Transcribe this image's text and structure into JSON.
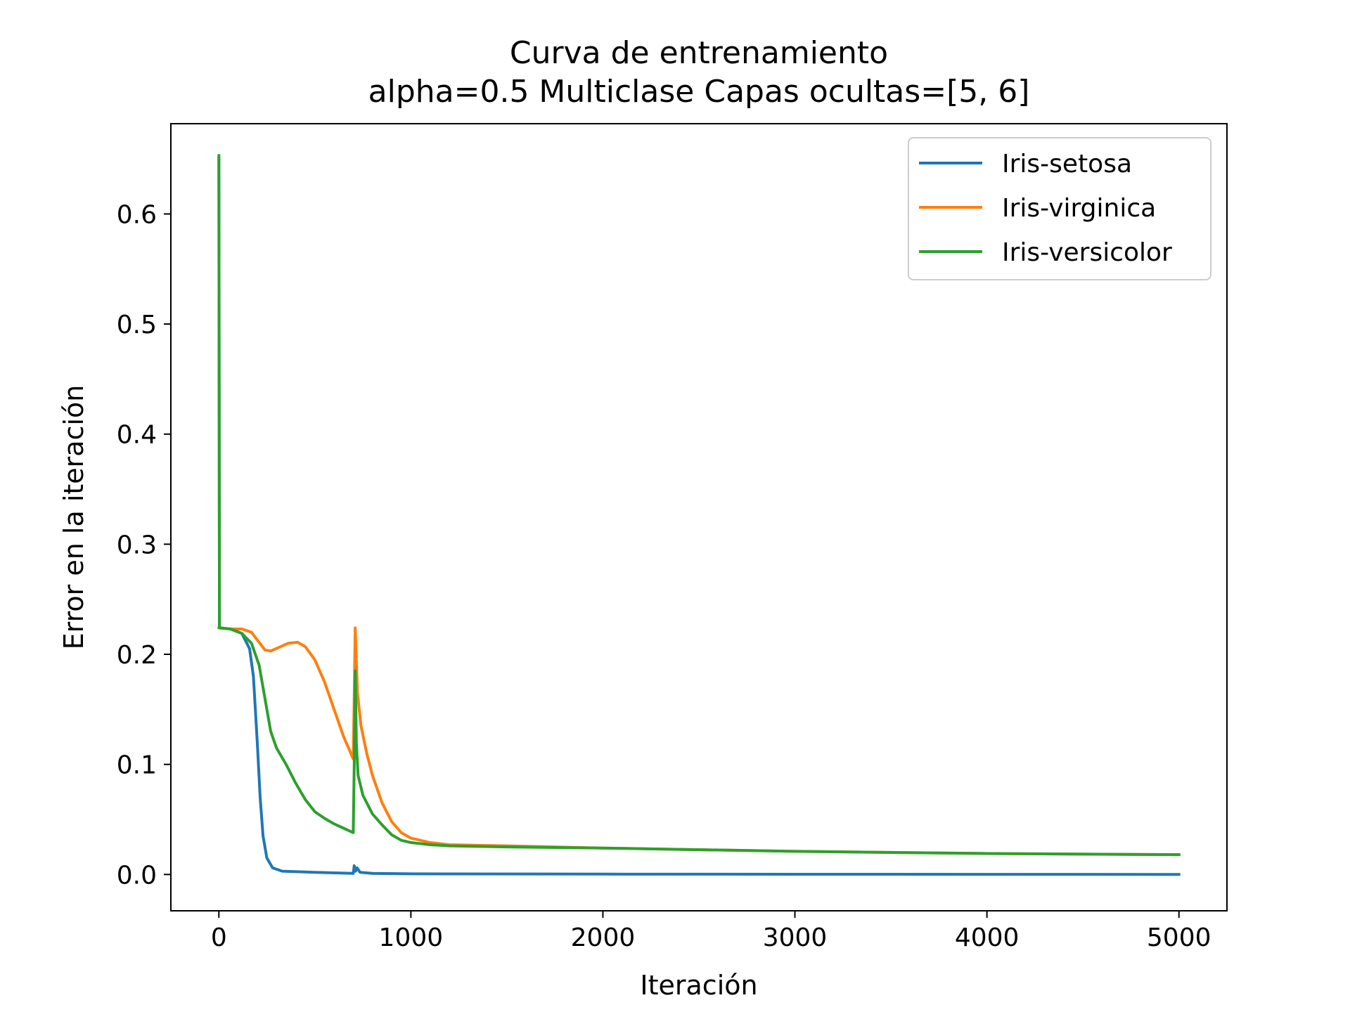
{
  "chart_data": {
    "type": "line",
    "title": "Curva de entrenamiento",
    "subtitle": "alpha=0.5 Multiclase Capas ocultas=[5, 6]",
    "xlabel": "Iteración",
    "ylabel": "Error en la iteración",
    "xlim": [
      -250,
      5250
    ],
    "ylim": [
      -0.033,
      0.682
    ],
    "x_ticks": [
      0,
      1000,
      2000,
      3000,
      4000,
      5000
    ],
    "x_tick_labels": [
      "0",
      "1000",
      "2000",
      "3000",
      "4000",
      "5000"
    ],
    "y_ticks": [
      0.0,
      0.1,
      0.2,
      0.3,
      0.4,
      0.5,
      0.6
    ],
    "y_tick_labels": [
      "0.0",
      "0.1",
      "0.2",
      "0.3",
      "0.4",
      "0.5",
      "0.6"
    ],
    "grid": false,
    "legend_position": "top-right",
    "series": [
      {
        "name": "Iris-setosa",
        "color": "#1f77b4",
        "points": [
          [
            0,
            0.65
          ],
          [
            3,
            0.224
          ],
          [
            60,
            0.223
          ],
          [
            120,
            0.219
          ],
          [
            160,
            0.205
          ],
          [
            180,
            0.18
          ],
          [
            200,
            0.12
          ],
          [
            215,
            0.07
          ],
          [
            230,
            0.035
          ],
          [
            250,
            0.015
          ],
          [
            280,
            0.006
          ],
          [
            330,
            0.003
          ],
          [
            500,
            0.002
          ],
          [
            700,
            0.001
          ],
          [
            705,
            0.008
          ],
          [
            712,
            0.003
          ],
          [
            720,
            0.006
          ],
          [
            735,
            0.002
          ],
          [
            800,
            0.001
          ],
          [
            1000,
            0.0006
          ],
          [
            2000,
            0.0003
          ],
          [
            3000,
            0.0002
          ],
          [
            5000,
            0.0001
          ]
        ]
      },
      {
        "name": "Iris-virginica",
        "color": "#ff7f0e",
        "points": [
          [
            0,
            0.224
          ],
          [
            60,
            0.223
          ],
          [
            120,
            0.223
          ],
          [
            170,
            0.22
          ],
          [
            200,
            0.213
          ],
          [
            240,
            0.204
          ],
          [
            270,
            0.203
          ],
          [
            310,
            0.206
          ],
          [
            360,
            0.21
          ],
          [
            410,
            0.211
          ],
          [
            450,
            0.207
          ],
          [
            500,
            0.195
          ],
          [
            550,
            0.175
          ],
          [
            600,
            0.15
          ],
          [
            650,
            0.125
          ],
          [
            700,
            0.105
          ],
          [
            706,
            0.175
          ],
          [
            710,
            0.224
          ],
          [
            715,
            0.2
          ],
          [
            722,
            0.165
          ],
          [
            740,
            0.135
          ],
          [
            770,
            0.11
          ],
          [
            800,
            0.09
          ],
          [
            850,
            0.065
          ],
          [
            900,
            0.048
          ],
          [
            950,
            0.038
          ],
          [
            1000,
            0.033
          ],
          [
            1100,
            0.029
          ],
          [
            1200,
            0.027
          ],
          [
            1500,
            0.026
          ],
          [
            2000,
            0.024
          ],
          [
            3000,
            0.021
          ],
          [
            4000,
            0.019
          ],
          [
            5000,
            0.018
          ]
        ]
      },
      {
        "name": "Iris-versicolor",
        "color": "#2ca02c",
        "points": [
          [
            0,
            0.653
          ],
          [
            3,
            0.224
          ],
          [
            60,
            0.223
          ],
          [
            120,
            0.219
          ],
          [
            170,
            0.21
          ],
          [
            210,
            0.19
          ],
          [
            240,
            0.16
          ],
          [
            270,
            0.13
          ],
          [
            300,
            0.115
          ],
          [
            350,
            0.1
          ],
          [
            400,
            0.083
          ],
          [
            450,
            0.068
          ],
          [
            500,
            0.057
          ],
          [
            550,
            0.051
          ],
          [
            600,
            0.046
          ],
          [
            650,
            0.042
          ],
          [
            700,
            0.038
          ],
          [
            705,
            0.1
          ],
          [
            710,
            0.185
          ],
          [
            716,
            0.12
          ],
          [
            725,
            0.09
          ],
          [
            750,
            0.072
          ],
          [
            800,
            0.055
          ],
          [
            850,
            0.045
          ],
          [
            900,
            0.036
          ],
          [
            950,
            0.031
          ],
          [
            1000,
            0.029
          ],
          [
            1100,
            0.027
          ],
          [
            1200,
            0.026
          ],
          [
            1500,
            0.025
          ],
          [
            2000,
            0.024
          ],
          [
            3000,
            0.021
          ],
          [
            4000,
            0.019
          ],
          [
            5000,
            0.018
          ]
        ]
      }
    ]
  }
}
